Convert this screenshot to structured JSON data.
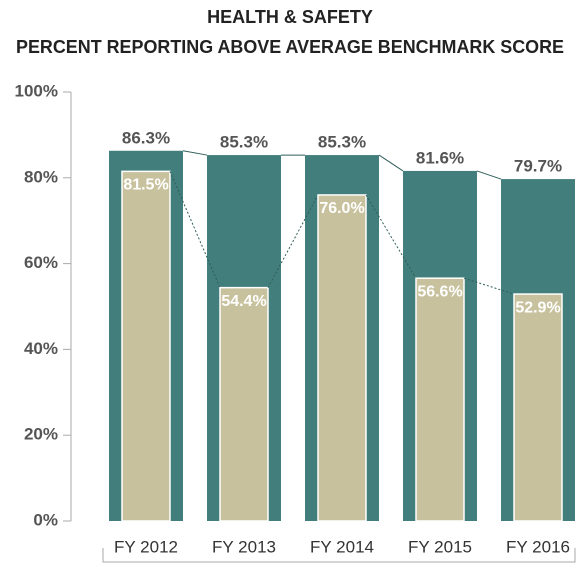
{
  "chart_data": {
    "type": "overlapped-bar",
    "title": "HEALTH & SAFETY",
    "subtitle": "PERCENT REPORTING ABOVE AVERAGE BENCHMARK SCORE",
    "categories": [
      "FY 2012",
      "FY 2013",
      "FY 2014",
      "FY 2015",
      "FY 2016"
    ],
    "series": [
      {
        "color": "#427e7b",
        "values": [
          86.3,
          85.3,
          85.3,
          81.6,
          79.7
        ],
        "value_labels": [
          "86.3%",
          "85.3%",
          "85.3%",
          "81.6%",
          "79.7%"
        ]
      },
      {
        "color": "#c8c19d",
        "values": [
          81.5,
          54.4,
          76.0,
          56.6,
          52.9
        ],
        "value_labels": [
          "81.5%",
          "54.4%",
          "76.0%",
          "56.6%",
          "52.9%"
        ]
      }
    ],
    "ylim": [
      0,
      100
    ],
    "yticks": [
      {
        "value": 0,
        "label": "0%"
      },
      {
        "value": 20,
        "label": "20%"
      },
      {
        "value": 40,
        "label": "40%"
      },
      {
        "value": 60,
        "label": "60%"
      },
      {
        "value": 80,
        "label": "80%"
      },
      {
        "value": 100,
        "label": "100%"
      }
    ]
  }
}
